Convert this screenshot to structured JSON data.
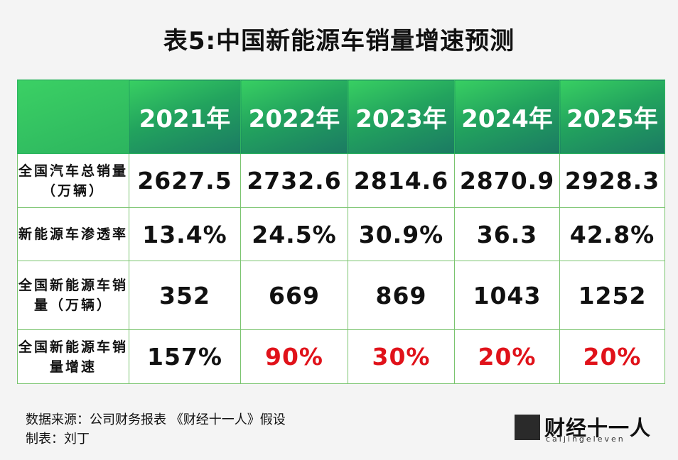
{
  "title": "表5:中国新能源车销量增速预测",
  "table": {
    "years": [
      "2021年",
      "2022年",
      "2023年",
      "2024年",
      "2025年"
    ],
    "rows": [
      {
        "label": "全国汽车总销量（万辆）",
        "values": [
          "2627.5",
          "2732.6",
          "2814.6",
          "2870.9",
          "2928.3"
        ]
      },
      {
        "label": "新能源车渗透率",
        "values": [
          "13.4%",
          "24.5%",
          "30.9%",
          "36.3",
          "42.8%"
        ]
      },
      {
        "label": "全国新能源车销量（万辆）",
        "values": [
          "352",
          "669",
          "869",
          "1043",
          "1252"
        ]
      },
      {
        "label": "全国新能源车销量增速",
        "values": [
          "157%",
          "90%",
          "30%",
          "20%",
          "20%"
        ]
      }
    ]
  },
  "footer": {
    "source": "数据来源：公司财务报表 《财经十一人》假设",
    "author": "制表：刘丁"
  },
  "brand": {
    "name": "财经十一人",
    "sub": "caijingeleven",
    "badge": "财经十一人"
  },
  "colors": {
    "header_green": "#2fb561",
    "header_teal": "#1b7a63",
    "border": "#7ac46f",
    "highlight_red": "#e0121a"
  }
}
